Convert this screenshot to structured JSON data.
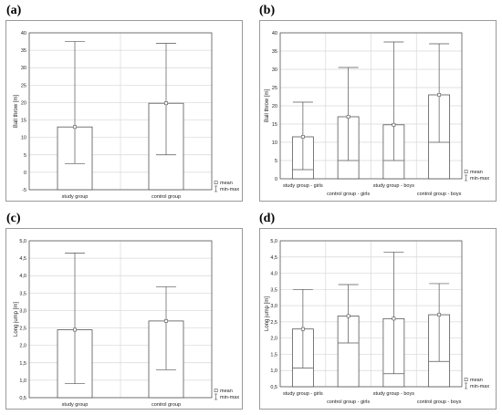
{
  "panels": [
    "(a)",
    "(b)",
    "(c)",
    "(d)"
  ],
  "legend": {
    "mean": "mean",
    "minmax": "min-max"
  },
  "chart_data": [
    {
      "type": "bar",
      "ylabel": "Ball throw [m]",
      "ylim": [
        -5,
        40
      ],
      "yticks": [
        -5,
        0,
        5,
        10,
        15,
        20,
        25,
        30,
        35,
        40
      ],
      "tick_labels": [
        "-5",
        "0",
        "5",
        "10",
        "15",
        "20",
        "25",
        "30",
        "35",
        "40"
      ],
      "categories": [
        "study group",
        "control group"
      ],
      "values": [
        13,
        19.8
      ],
      "min": [
        2.5,
        5
      ],
      "max": [
        37.5,
        37
      ],
      "grid": true,
      "legend_position": "bottom-right"
    },
    {
      "type": "bar",
      "ylabel": "Ball throw [m]",
      "ylim": [
        0,
        40
      ],
      "yticks": [
        0,
        5,
        10,
        15,
        20,
        25,
        30,
        35,
        40
      ],
      "tick_labels": [
        "0",
        "5",
        "10",
        "15",
        "20",
        "25",
        "30",
        "35",
        "40"
      ],
      "categories": [
        "study group - girls",
        "control group - girls",
        "study group - boys",
        "control group - boys"
      ],
      "values": [
        11.5,
        17,
        14.8,
        23
      ],
      "min": [
        2.5,
        5,
        5,
        10
      ],
      "max": [
        21,
        30.5,
        37.5,
        37
      ],
      "grid": true,
      "legend_position": "bottom-right"
    },
    {
      "type": "bar",
      "ylabel": "Long jump [m]",
      "ylim": [
        0.5,
        5.0
      ],
      "yticks": [
        0.5,
        1.0,
        1.5,
        2.0,
        2.5,
        3.0,
        3.5,
        4.0,
        4.5,
        5.0
      ],
      "tick_labels": [
        "0,5",
        "1,0",
        "1,5",
        "2,0",
        "2,5",
        "3,0",
        "3,5",
        "4,0",
        "4,5",
        "5,0"
      ],
      "categories": [
        "study group",
        "control group"
      ],
      "values": [
        2.45,
        2.7
      ],
      "min": [
        0.9,
        1.3
      ],
      "max": [
        4.65,
        3.68
      ],
      "grid": true,
      "legend_position": "bottom-right"
    },
    {
      "type": "bar",
      "ylabel": "Long jump [m]",
      "ylim": [
        0.5,
        5.0
      ],
      "yticks": [
        0.5,
        1.0,
        1.5,
        2.0,
        2.5,
        3.0,
        3.5,
        4.0,
        4.5,
        5.0
      ],
      "tick_labels": [
        "0,5",
        "1,0",
        "1,5",
        "2,0",
        "2,5",
        "3,0",
        "3,5",
        "4,0",
        "4,5",
        "5,0"
      ],
      "categories": [
        "study group - girls",
        "control group - girls",
        "study group - boys",
        "control group - boys"
      ],
      "values": [
        2.28,
        2.68,
        2.6,
        2.72
      ],
      "min": [
        1.08,
        1.85,
        0.9,
        1.28
      ],
      "max": [
        3.5,
        3.65,
        4.65,
        3.68
      ],
      "grid": true,
      "legend_position": "bottom-right"
    }
  ]
}
